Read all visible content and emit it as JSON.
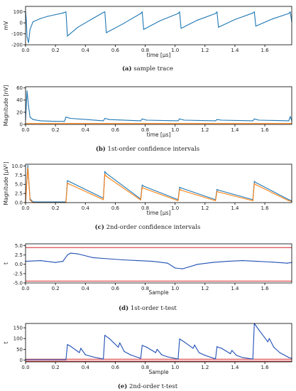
{
  "chart_data": [
    {
      "type": "line",
      "caption_id": "(a)",
      "caption": "sample trace",
      "xlabel": "time [µs]",
      "ylabel": "mV",
      "xlim": [
        0.0,
        1.78
      ],
      "ylim": [
        -200,
        150
      ],
      "xticks": [
        "0.0",
        "0.2",
        "0.4",
        "0.6",
        "0.8",
        "1.0",
        "1.2",
        "1.4",
        "1.6"
      ],
      "yticks": [
        "100",
        "0",
        "-100",
        "-200"
      ],
      "grid": false,
      "colors": {
        "trace": "#1f77b4"
      },
      "series": [
        {
          "x": [
            0.0,
            0.005,
            0.01,
            0.02,
            0.03,
            0.05,
            0.1,
            0.15,
            0.2,
            0.25,
            0.27,
            0.28,
            0.35,
            0.45,
            0.52,
            0.53,
            0.54,
            0.65,
            0.77,
            0.78,
            0.79,
            0.9,
            1.02,
            1.03,
            1.04,
            1.15,
            1.27,
            1.28,
            1.29,
            1.4,
            1.52,
            1.53,
            1.54,
            1.65,
            1.76,
            1.77,
            1.78
          ],
          "values": [
            100,
            20,
            -130,
            -180,
            -60,
            10,
            40,
            60,
            75,
            90,
            100,
            -120,
            -40,
            40,
            95,
            100,
            -90,
            -10,
            85,
            100,
            -60,
            20,
            85,
            100,
            -50,
            25,
            85,
            100,
            -40,
            30,
            90,
            100,
            -30,
            35,
            85,
            100,
            10
          ]
        }
      ]
    },
    {
      "type": "line",
      "caption_id": "(b)",
      "caption": "1st-order confidence intervals",
      "xlabel": "time [µs]",
      "ylabel": "Magnitude [nV]",
      "xlim": [
        0.0,
        1.78
      ],
      "ylim": [
        0,
        62
      ],
      "xticks": [
        "0.0",
        "0.2",
        "0.4",
        "0.6",
        "0.8",
        "1.0",
        "1.2",
        "1.4",
        "1.6"
      ],
      "yticks": [
        "60",
        "40",
        "20",
        "0"
      ],
      "grid": false,
      "colors": {
        "upper": "#1f77b4",
        "lower": "#ff7f0e"
      },
      "series": [
        {
          "x": [
            0.0,
            0.01,
            0.02,
            0.03,
            0.05,
            0.1,
            0.2,
            0.26,
            0.27,
            0.3,
            0.52,
            0.53,
            0.56,
            0.77,
            0.78,
            0.81,
            1.02,
            1.03,
            1.06,
            1.27,
            1.28,
            1.31,
            1.52,
            1.53,
            1.56,
            1.76,
            1.77,
            1.78
          ],
          "values": [
            8,
            55,
            30,
            12,
            8,
            6,
            5,
            5,
            12,
            10,
            6,
            10,
            8,
            6,
            9,
            7,
            6,
            9,
            7,
            6,
            8,
            7,
            6,
            9,
            7,
            6,
            13,
            6
          ]
        },
        {
          "x": [
            0.0,
            1.78
          ],
          "values": [
            1.5,
            1.5
          ]
        }
      ]
    },
    {
      "type": "line",
      "caption_id": "(c)",
      "caption": "2nd-order confidence intervals",
      "xlabel": "time [µs]",
      "ylabel": "Magnitude [µV²]",
      "xlim": [
        0.0,
        1.78
      ],
      "ylim": [
        0,
        10.5
      ],
      "xticks": [
        "0.0",
        "0.2",
        "0.4",
        "0.6",
        "0.8",
        "1.0",
        "1.2",
        "1.4",
        "1.6"
      ],
      "yticks": [
        "10.0",
        "7.5",
        "5.0",
        "2.5",
        "0.0"
      ],
      "grid": false,
      "colors": {
        "upper": "#1f77b4",
        "lower": "#ff7f0e"
      },
      "series": [
        {
          "x": [
            0.0,
            0.015,
            0.03,
            0.05,
            0.27,
            0.28,
            0.52,
            0.53,
            0.54,
            0.77,
            0.78,
            0.79,
            1.02,
            1.03,
            1.04,
            1.27,
            1.28,
            1.29,
            1.52,
            1.53,
            1.54,
            1.76,
            1.78
          ],
          "values": [
            0.3,
            10.2,
            1.0,
            0.2,
            0.2,
            6.0,
            1.2,
            8.5,
            8.0,
            1.0,
            4.8,
            4.5,
            0.8,
            4.2,
            4.0,
            0.8,
            3.6,
            3.4,
            0.8,
            5.8,
            5.5,
            0.8,
            0.5
          ]
        },
        {
          "x": [
            0.0,
            0.015,
            0.03,
            0.05,
            0.27,
            0.28,
            0.52,
            0.53,
            0.54,
            0.77,
            0.78,
            0.79,
            1.02,
            1.03,
            1.04,
            1.27,
            1.28,
            1.29,
            1.52,
            1.53,
            1.54,
            1.76,
            1.78
          ],
          "values": [
            0.1,
            9.5,
            0.7,
            0.0,
            0.0,
            5.3,
            0.8,
            7.8,
            7.2,
            0.7,
            4.2,
            3.9,
            0.5,
            3.7,
            3.4,
            0.5,
            3.1,
            2.9,
            0.5,
            5.2,
            4.9,
            0.5,
            0.3
          ]
        }
      ]
    },
    {
      "type": "line",
      "caption_id": "(d)",
      "caption": "1st-order t-test",
      "xlabel": "Sample",
      "ylabel": "t",
      "xlim": [
        0.0,
        1.78
      ],
      "ylim": [
        -5.0,
        5.5
      ],
      "xticks": [
        "0.0",
        "0.2",
        "0.4",
        "0.6",
        "0.8",
        "1.0",
        "1.2",
        "1.4",
        "1.6"
      ],
      "yticks": [
        "5.0",
        "2.5",
        "0.0",
        "-2.5",
        "-5.0"
      ],
      "grid": false,
      "colors": {
        "t": "#1f4fb4",
        "threshold": "#d62728"
      },
      "thresholds": [
        4.5,
        -4.5
      ],
      "series": [
        {
          "x": [
            0.0,
            0.1,
            0.2,
            0.25,
            0.28,
            0.3,
            0.35,
            0.45,
            0.55,
            0.65,
            0.75,
            0.85,
            0.95,
            1.0,
            1.05,
            1.15,
            1.25,
            1.35,
            1.45,
            1.55,
            1.65,
            1.75,
            1.78
          ],
          "values": [
            0.8,
            1.0,
            0.5,
            0.8,
            2.5,
            3.0,
            2.8,
            1.8,
            1.5,
            1.2,
            1.0,
            0.8,
            0.3,
            -1.0,
            -1.2,
            0.0,
            0.5,
            0.8,
            1.0,
            0.8,
            0.6,
            0.3,
            0.5
          ]
        }
      ]
    },
    {
      "type": "line",
      "caption_id": "(e)",
      "caption": "2nd-order t-test",
      "xlabel": "Sample",
      "ylabel": "t",
      "xlim": [
        0.0,
        1.78
      ],
      "ylim": [
        -8,
        170
      ],
      "xticks": [
        "0.0",
        "0.2",
        "0.4",
        "0.6",
        "0.8",
        "1.0",
        "1.2",
        "1.4",
        "1.6"
      ],
      "yticks": [
        "150",
        "100",
        "50",
        "0"
      ],
      "grid": false,
      "colors": {
        "t": "#1f4fb4",
        "threshold": "#d62728"
      },
      "thresholds": [
        4.5,
        -4.5
      ],
      "series": [
        {
          "x": [
            0.0,
            0.27,
            0.28,
            0.3,
            0.36,
            0.37,
            0.4,
            0.45,
            0.52,
            0.53,
            0.56,
            0.62,
            0.63,
            0.66,
            0.7,
            0.77,
            0.78,
            0.81,
            0.87,
            0.88,
            0.91,
            0.95,
            1.02,
            1.03,
            1.06,
            1.12,
            1.13,
            1.16,
            1.2,
            1.27,
            1.28,
            1.31,
            1.37,
            1.38,
            1.41,
            1.45,
            1.52,
            1.53,
            1.56,
            1.62,
            1.63,
            1.66,
            1.7,
            1.76,
            1.78
          ],
          "values": [
            2,
            2,
            72,
            65,
            35,
            55,
            25,
            15,
            5,
            115,
            100,
            60,
            80,
            40,
            25,
            8,
            68,
            60,
            35,
            50,
            25,
            15,
            5,
            98,
            85,
            55,
            70,
            35,
            22,
            6,
            62,
            55,
            30,
            45,
            22,
            12,
            5,
            170,
            140,
            85,
            100,
            60,
            35,
            12,
            8
          ]
        }
      ]
    }
  ]
}
